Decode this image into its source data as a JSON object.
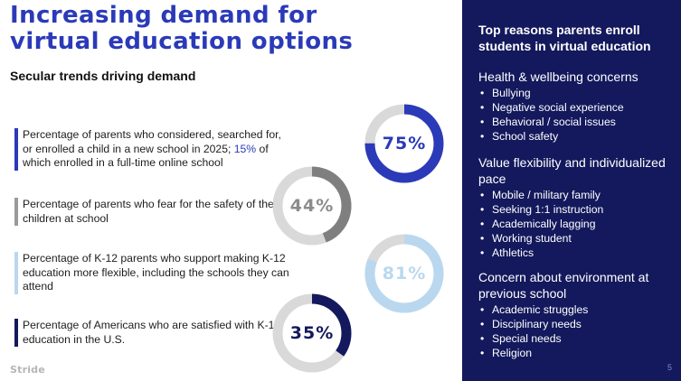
{
  "title_lines": [
    "Increasing demand for",
    "virtual education options"
  ],
  "subtitle": "Secular trends driving demand",
  "stats": [
    {
      "text_before": "Percentage of parents who considered, searched for, or enrolled a child in a new school in 2025; ",
      "highlight": "15%",
      "text_after": " of which enrolled in a full-time online school",
      "percent_label": "75%",
      "value": 75,
      "color": "#2b3ab8",
      "text_color": "#2b3ab8"
    },
    {
      "text_before": "Percentage of parents who fear for the safety of their children at school",
      "highlight": "",
      "text_after": "",
      "percent_label": "44%",
      "value": 44,
      "color": "#7f7f7f",
      "text_color": "#8c8c8c"
    },
    {
      "text_before": "Percentage of K-12 parents who support making K-12 education more flexible, including the schools they can attend",
      "highlight": "",
      "text_after": "",
      "percent_label": "81%",
      "value": 81,
      "color": "#b9d8ef",
      "text_color": "#b9d8ef"
    },
    {
      "text_before": "Percentage of Americans who are satisfied with K-12 education in the U.S.",
      "highlight": "",
      "text_after": "",
      "percent_label": "35%",
      "value": 35,
      "color": "#13195c",
      "text_color": "#13195c"
    }
  ],
  "track_color": "#d9d9d9",
  "logo": "Stride",
  "panel": {
    "title": "Top reasons parents enroll students in virtual education",
    "groups": [
      {
        "heading": "Health & wellbeing concerns",
        "items": [
          "Bullying",
          "Negative social experience",
          "Behavioral / social issues",
          "School safety"
        ]
      },
      {
        "heading": "Value flexibility and individualized pace",
        "items": [
          "Mobile / military family",
          "Seeking 1:1 instruction",
          "Academically lagging",
          "Working student",
          "Athletics"
        ]
      },
      {
        "heading": "Concern about environment at previous school",
        "items": [
          "Academic struggles",
          "Disciplinary needs",
          "Special needs",
          "Religion"
        ]
      }
    ],
    "page_number": "5"
  },
  "colors": {
    "accent": "#2b3ab8",
    "navy": "#13195c",
    "light_blue": "#b9d8ef",
    "gray": "#9a9a9a"
  }
}
